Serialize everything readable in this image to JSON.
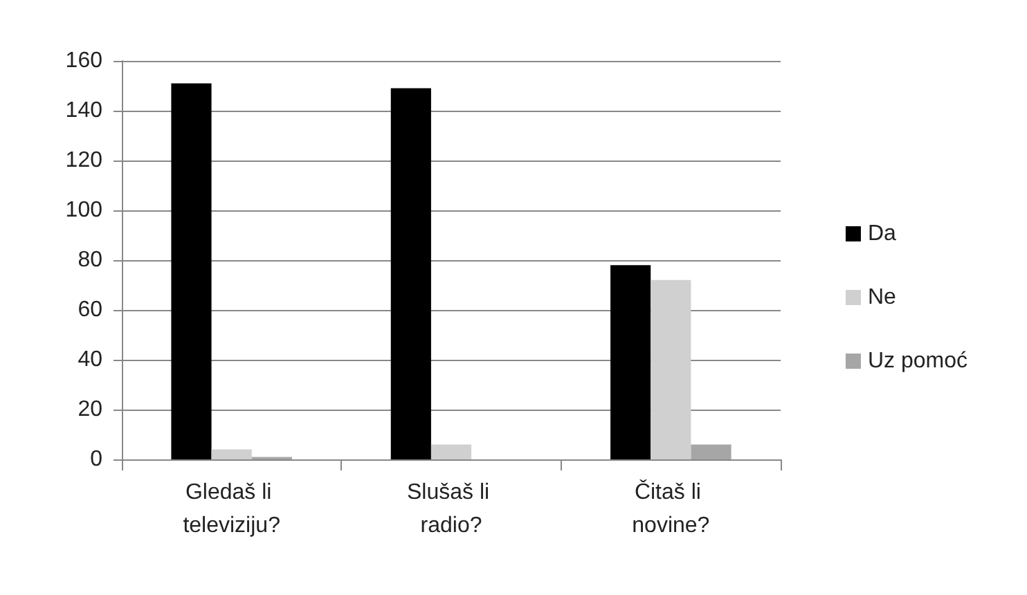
{
  "chart_data": {
    "type": "bar",
    "categories": [
      "Gledaš li televiziju?",
      "Slušaš li radio?",
      "Čitaš li novine?"
    ],
    "series": [
      {
        "name": "Da",
        "color": "#000000",
        "values": [
          151,
          149,
          78
        ]
      },
      {
        "name": "Ne",
        "color": "#d0d0d0",
        "values": [
          4,
          6,
          72
        ]
      },
      {
        "name": "Uz pomoć",
        "color": "#a6a6a6",
        "values": [
          1,
          0,
          6
        ]
      }
    ],
    "ylim": [
      0,
      160
    ],
    "yticks": [
      0,
      20,
      40,
      60,
      80,
      100,
      120,
      140,
      160
    ],
    "grid": "y",
    "legend": "right"
  }
}
